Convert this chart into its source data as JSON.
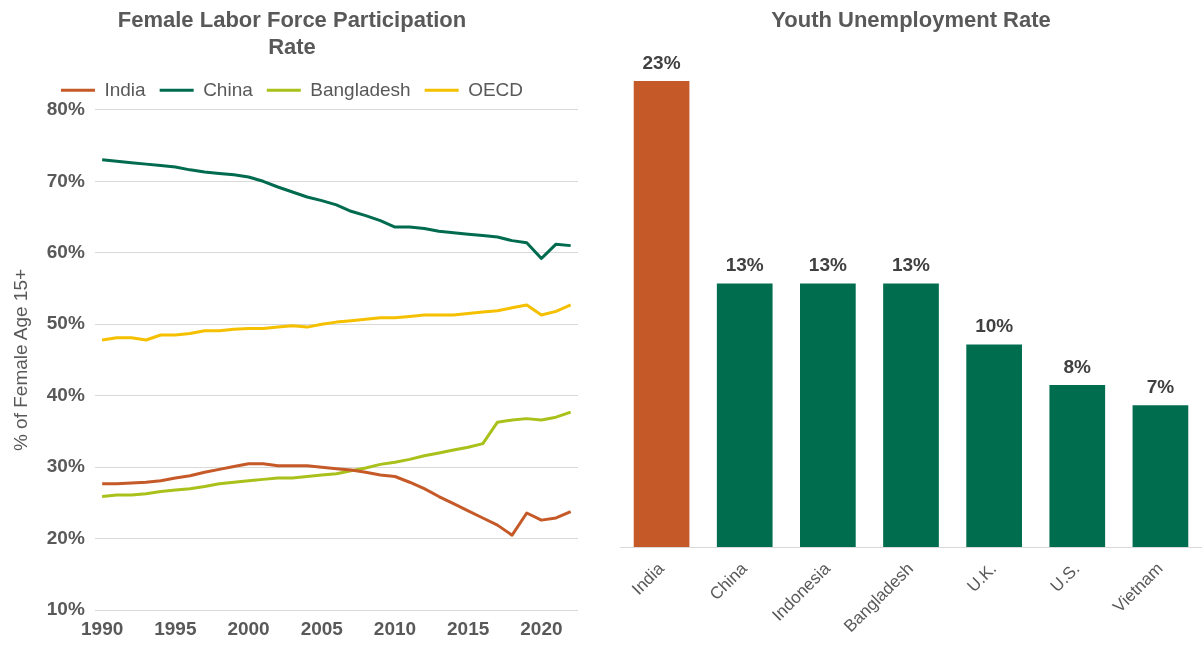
{
  "chart_data": [
    {
      "type": "line",
      "title": "Female Labor Force Participation Rate",
      "ylabel": "% of Female Age 15+",
      "x": [
        1990,
        1991,
        1992,
        1993,
        1994,
        1995,
        1996,
        1997,
        1998,
        1999,
        2000,
        2001,
        2002,
        2003,
        2004,
        2005,
        2006,
        2007,
        2008,
        2009,
        2010,
        2011,
        2012,
        2013,
        2014,
        2015,
        2016,
        2017,
        2018,
        2019,
        2020,
        2021,
        2022
      ],
      "series": [
        {
          "name": "India",
          "color": "#c55a28",
          "values": [
            27.7,
            27.7,
            27.8,
            27.9,
            28.1,
            28.5,
            28.8,
            29.3,
            29.7,
            30.1,
            30.5,
            30.5,
            30.2,
            30.2,
            30.2,
            30.0,
            29.8,
            29.6,
            29.3,
            28.9,
            28.7,
            27.9,
            27.0,
            25.9,
            24.9,
            23.9,
            22.9,
            21.9,
            20.5,
            23.6,
            22.6,
            22.9,
            23.8
          ]
        },
        {
          "name": "China",
          "color": "#006b4f",
          "values": [
            73.0,
            72.8,
            72.6,
            72.4,
            72.2,
            72.0,
            71.6,
            71.3,
            71.1,
            70.9,
            70.6,
            70.0,
            69.2,
            68.5,
            67.8,
            67.3,
            66.7,
            65.8,
            65.2,
            64.5,
            63.6,
            63.6,
            63.4,
            63.0,
            62.8,
            62.6,
            62.4,
            62.2,
            61.7,
            61.4,
            59.2,
            61.2,
            61.0
          ]
        },
        {
          "name": "Bangladesh",
          "color": "#a9c11a",
          "values": [
            25.9,
            26.1,
            26.1,
            26.3,
            26.6,
            26.8,
            27.0,
            27.3,
            27.7,
            27.9,
            28.1,
            28.3,
            28.5,
            28.5,
            28.7,
            28.9,
            29.1,
            29.5,
            29.9,
            30.4,
            30.7,
            31.1,
            31.6,
            32.0,
            32.4,
            32.8,
            33.3,
            36.3,
            36.6,
            36.8,
            36.6,
            37.0,
            37.7
          ]
        },
        {
          "name": "OECD",
          "color": "#f5c000",
          "values": [
            47.8,
            48.1,
            48.1,
            47.8,
            48.5,
            48.5,
            48.7,
            49.1,
            49.1,
            49.3,
            49.4,
            49.4,
            49.6,
            49.8,
            49.6,
            50.0,
            50.3,
            50.5,
            50.7,
            50.9,
            50.9,
            51.1,
            51.3,
            51.3,
            51.3,
            51.5,
            51.7,
            51.9,
            52.3,
            52.7,
            51.3,
            51.8,
            52.7
          ]
        }
      ],
      "xlim": [
        1989.5,
        2022.5
      ],
      "xticks": [
        1990,
        1995,
        2000,
        2005,
        2010,
        2015,
        2020
      ],
      "ylim": [
        10,
        80
      ],
      "yticks": [
        {
          "value": 10,
          "label": "10%"
        },
        {
          "value": 20,
          "label": "20%"
        },
        {
          "value": 30,
          "label": "30%"
        },
        {
          "value": 40,
          "label": "40%"
        },
        {
          "value": 50,
          "label": "50%"
        },
        {
          "value": 60,
          "label": "60%"
        },
        {
          "value": 70,
          "label": "70%"
        },
        {
          "value": 80,
          "label": "80%"
        }
      ],
      "grid": "y",
      "legend": "top"
    },
    {
      "type": "bar",
      "title": "Youth Unemployment Rate",
      "categories": [
        "India",
        "China",
        "Indonesia",
        "Bangladesh",
        "U.K.",
        "U.S.",
        "Vietnam"
      ],
      "values": [
        23,
        13,
        13,
        13,
        10,
        8,
        7
      ],
      "colors": [
        "#c55a28",
        "#006e4e",
        "#006e4e",
        "#006e4e",
        "#006e4e",
        "#006e4e",
        "#006e4e"
      ],
      "value_labels": [
        "23%",
        "13%",
        "13%",
        "13%",
        "10%",
        "8%",
        "7%"
      ],
      "tick_labels": "x"
    }
  ]
}
